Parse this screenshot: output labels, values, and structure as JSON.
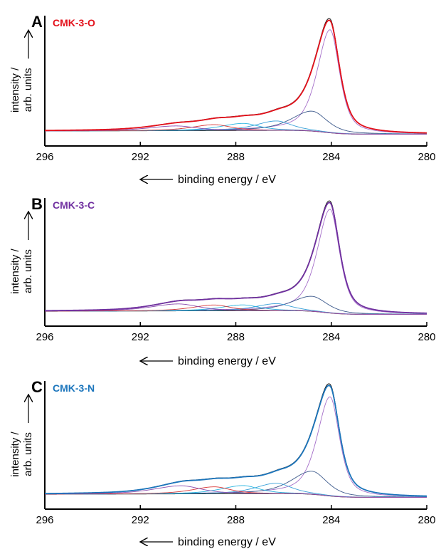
{
  "chart_data": [
    {
      "type": "line",
      "panel_letter": "A",
      "sample_name": "CMK-3-O",
      "sample_color": "#e3101a",
      "xlabel": "binding energy / eV",
      "ylabel_line1": "intensity /",
      "ylabel_line2": "arb. units",
      "xlim": [
        296,
        280
      ],
      "xticks": [
        "296",
        "292",
        "288",
        "284",
        "280"
      ],
      "peak_main": 284.05,
      "components": [
        {
          "center": 284.05,
          "fwhm": 0.95,
          "height": 0.88,
          "color": "#a56fc9"
        },
        {
          "center": 284.8,
          "fwhm": 1.5,
          "height": 0.17,
          "color": "#3d5a8c"
        },
        {
          "center": 286.3,
          "fwhm": 1.5,
          "height": 0.08,
          "color": "#3aa0d8"
        },
        {
          "center": 287.7,
          "fwhm": 1.6,
          "height": 0.06,
          "color": "#2ab5e0"
        },
        {
          "center": 288.9,
          "fwhm": 1.6,
          "height": 0.05,
          "color": "#d93a3a"
        },
        {
          "center": 290.5,
          "fwhm": 2.0,
          "height": 0.04,
          "color": "#8c4fb0"
        }
      ]
    },
    {
      "type": "line",
      "panel_letter": "B",
      "sample_name": "CMK-3-C",
      "sample_color": "#7030a0",
      "xlabel": "binding energy / eV",
      "ylabel_line1": "intensity /",
      "ylabel_line2": "arb. units",
      "xlim": [
        296,
        280
      ],
      "xticks": [
        "296",
        "292",
        "288",
        "284",
        "280"
      ],
      "peak_main": 284.05,
      "components": [
        {
          "center": 284.05,
          "fwhm": 0.95,
          "height": 0.9,
          "color": "#a56fc9"
        },
        {
          "center": 284.8,
          "fwhm": 1.5,
          "height": 0.13,
          "color": "#3d5a8c"
        },
        {
          "center": 286.3,
          "fwhm": 1.5,
          "height": 0.06,
          "color": "#3aa0d8"
        },
        {
          "center": 287.7,
          "fwhm": 1.6,
          "height": 0.05,
          "color": "#2ab5e0"
        },
        {
          "center": 288.9,
          "fwhm": 1.6,
          "height": 0.05,
          "color": "#d93a3a"
        },
        {
          "center": 290.4,
          "fwhm": 2.0,
          "height": 0.06,
          "color": "#8c4fb0"
        }
      ]
    },
    {
      "type": "line",
      "panel_letter": "C",
      "sample_name": "CMK-3-N",
      "sample_color": "#1b75bc",
      "xlabel": "binding energy / eV",
      "ylabel_line1": "intensity /",
      "ylabel_line2": "arb. units",
      "xlim": [
        296,
        280
      ],
      "xticks": [
        "296",
        "292",
        "288",
        "284",
        "280"
      ],
      "peak_main": 284.05,
      "components": [
        {
          "center": 284.05,
          "fwhm": 0.95,
          "height": 0.86,
          "color": "#a56fc9"
        },
        {
          "center": 284.8,
          "fwhm": 1.5,
          "height": 0.2,
          "color": "#3d5a8c"
        },
        {
          "center": 286.3,
          "fwhm": 1.5,
          "height": 0.09,
          "color": "#3aa0d8"
        },
        {
          "center": 287.7,
          "fwhm": 1.6,
          "height": 0.07,
          "color": "#2ab5e0"
        },
        {
          "center": 288.9,
          "fwhm": 1.6,
          "height": 0.06,
          "color": "#d93a3a"
        },
        {
          "center": 290.3,
          "fwhm": 2.0,
          "height": 0.07,
          "color": "#8c4fb0"
        }
      ]
    }
  ]
}
